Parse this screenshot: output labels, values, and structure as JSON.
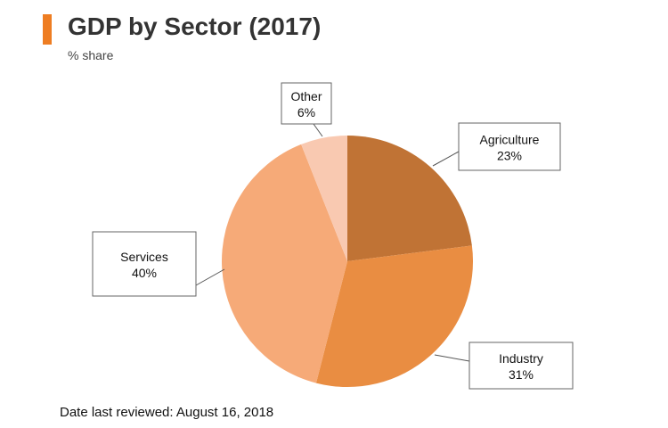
{
  "header": {
    "title": "GDP by Sector (2017)",
    "subtitle": "% share",
    "accent_color": "#ee7d22"
  },
  "chart_data": {
    "type": "pie",
    "unit": "%",
    "slices": [
      {
        "label": "Agriculture",
        "value": 23,
        "color": "#c07335"
      },
      {
        "label": "Industry",
        "value": 31,
        "color": "#e98d42"
      },
      {
        "label": "Services",
        "value": 40,
        "color": "#f6aa78"
      },
      {
        "label": "Other",
        "value": 6,
        "color": "#f9c9b1"
      }
    ],
    "start_angle_deg": 0,
    "direction": "clockwise",
    "legend": "none (callout labels)"
  },
  "footer": {
    "review_text": "Date last reviewed: August 16, 2018"
  }
}
